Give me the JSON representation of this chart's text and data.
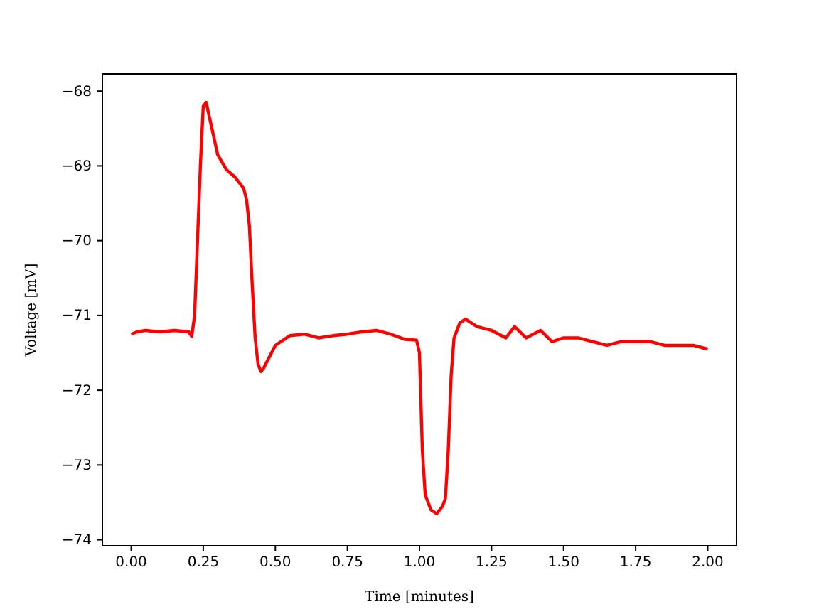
{
  "chart_data": {
    "type": "line",
    "xlabel": "Time [minutes]",
    "ylabel": "Voltage [mV]",
    "xlim": [
      -0.1,
      2.1
    ],
    "ylim": [
      -74.08,
      -67.77
    ],
    "xticks": [
      {
        "value": 0,
        "label": "0.00"
      },
      {
        "value": 0.25,
        "label": "0.25"
      },
      {
        "value": 0.5,
        "label": "0.50"
      },
      {
        "value": 0.75,
        "label": "0.75"
      },
      {
        "value": 1,
        "label": "1.00"
      },
      {
        "value": 1.25,
        "label": "1.25"
      },
      {
        "value": 1.5,
        "label": "1.50"
      },
      {
        "value": 1.75,
        "label": "1.75"
      },
      {
        "value": 2,
        "label": "2.00"
      }
    ],
    "yticks": [
      {
        "value": -74,
        "label": "−74"
      },
      {
        "value": -73,
        "label": "−73"
      },
      {
        "value": -72,
        "label": "−72"
      },
      {
        "value": -71,
        "label": "−71"
      },
      {
        "value": -70,
        "label": "−70"
      },
      {
        "value": -69,
        "label": "−69"
      },
      {
        "value": -68,
        "label": "−68"
      }
    ],
    "grid": false,
    "series": [
      {
        "color": "#ff0000",
        "x": [
          0,
          0.02,
          0.05,
          0.1,
          0.15,
          0.2,
          0.21,
          0.22,
          0.23,
          0.24,
          0.25,
          0.26,
          0.28,
          0.3,
          0.33,
          0.36,
          0.39,
          0.4,
          0.41,
          0.42,
          0.43,
          0.44,
          0.45,
          0.46,
          0.48,
          0.5,
          0.55,
          0.6,
          0.65,
          0.7,
          0.75,
          0.8,
          0.85,
          0.9,
          0.95,
          0.99,
          1,
          1.01,
          1.02,
          1.04,
          1.06,
          1.08,
          1.09,
          1.1,
          1.11,
          1.12,
          1.14,
          1.16,
          1.2,
          1.25,
          1.3,
          1.33,
          1.37,
          1.42,
          1.46,
          1.5,
          1.55,
          1.6,
          1.65,
          1.7,
          1.75,
          1.8,
          1.85,
          1.9,
          1.95,
          2
        ],
        "values": [
          -71.25,
          -71.22,
          -71.2,
          -71.22,
          -71.2,
          -71.22,
          -71.28,
          -71.0,
          -70.0,
          -69.0,
          -68.2,
          -68.15,
          -68.5,
          -68.85,
          -69.05,
          -69.15,
          -69.3,
          -69.45,
          -69.8,
          -70.6,
          -71.3,
          -71.65,
          -71.75,
          -71.7,
          -71.55,
          -71.4,
          -71.27,
          -71.25,
          -71.3,
          -71.27,
          -71.25,
          -71.22,
          -71.2,
          -71.25,
          -71.32,
          -71.33,
          -71.5,
          -72.8,
          -73.4,
          -73.6,
          -73.65,
          -73.55,
          -73.45,
          -72.8,
          -71.8,
          -71.3,
          -71.1,
          -71.05,
          -71.15,
          -71.2,
          -71.3,
          -71.15,
          -71.3,
          -71.2,
          -71.35,
          -71.3,
          -71.3,
          -71.35,
          -71.4,
          -71.35,
          -71.35,
          -71.35,
          -71.4,
          -71.4,
          -71.4,
          -71.45
        ]
      }
    ]
  }
}
